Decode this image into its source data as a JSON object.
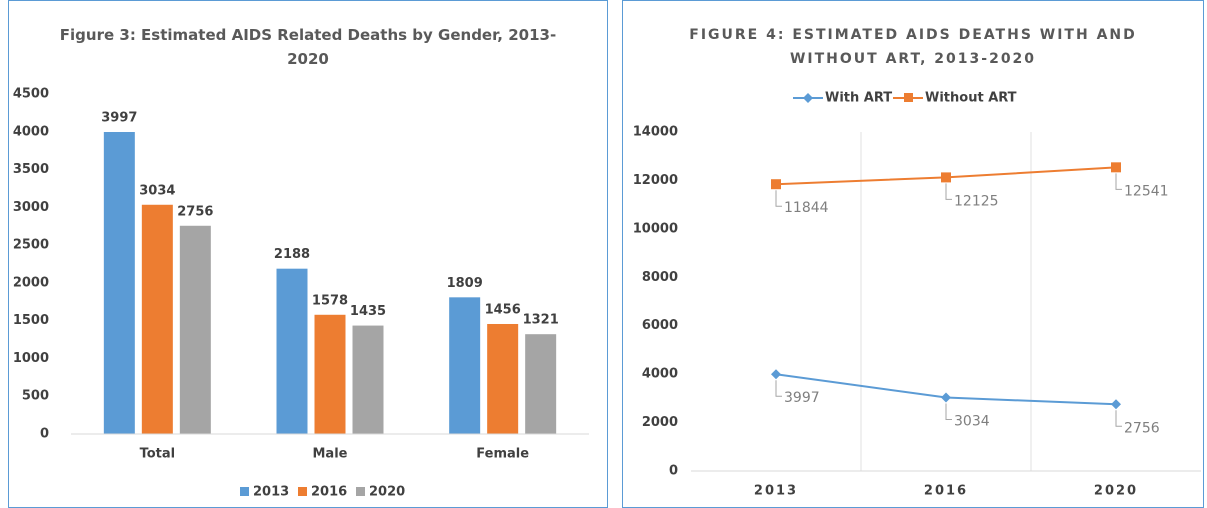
{
  "chart_data": [
    {
      "type": "bar",
      "title": "Figure 3: Estimated AIDS Related Deaths by Gender, 2013-2020",
      "categories": [
        "Total",
        "Male",
        "Female"
      ],
      "series": [
        {
          "name": "2013",
          "color": "#5b9bd5",
          "values": [
            3997,
            2188,
            1809
          ]
        },
        {
          "name": "2016",
          "color": "#ed7d31",
          "values": [
            3034,
            1578,
            1456
          ]
        },
        {
          "name": "2020",
          "color": "#a5a5a5",
          "values": [
            2756,
            1435,
            1321
          ]
        }
      ],
      "ylim": [
        0,
        4500
      ],
      "yticks": [
        0,
        500,
        1000,
        1500,
        2000,
        2500,
        3000,
        3500,
        4000,
        4500
      ],
      "legend": "bottom",
      "grid": false
    },
    {
      "type": "line",
      "title": "FIGURE 4: ESTIMATED AIDS DEATHS WITH AND WITHOUT ART, 2013-2020",
      "categories": [
        "2013",
        "2016",
        "2020"
      ],
      "series": [
        {
          "name": "With ART",
          "color": "#5b9bd5",
          "marker": "diamond",
          "values": [
            3997,
            3034,
            2756
          ]
        },
        {
          "name": "Without ART",
          "color": "#ed7d31",
          "marker": "square",
          "values": [
            11844,
            12125,
            12541
          ]
        }
      ],
      "ylim": [
        0,
        14000
      ],
      "yticks": [
        0,
        2000,
        4000,
        6000,
        8000,
        10000,
        12000,
        14000
      ],
      "legend": "top",
      "grid": false
    }
  ]
}
